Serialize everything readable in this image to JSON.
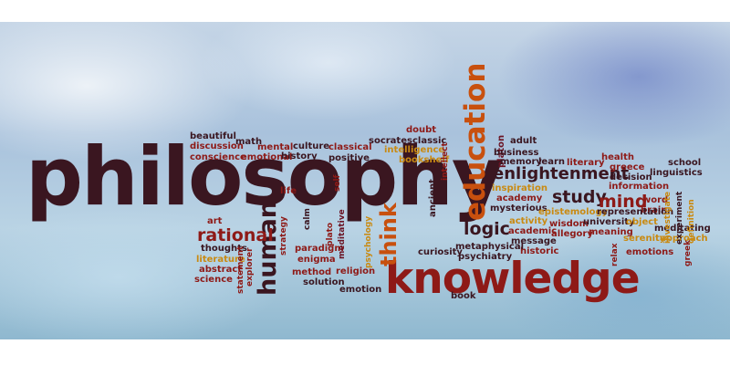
{
  "words": {
    "philosophy": "philosophy",
    "knowledge": "knowledge",
    "education": "education",
    "human": "human",
    "think": "think",
    "enlightenment": "enlightenment",
    "study": "study",
    "mind": "mind",
    "logic": "logic",
    "rational": "rational",
    "beautiful": "beautiful",
    "discussion": "discussion",
    "conscience": "conscience",
    "math": "math",
    "mental": "mental",
    "emotional": "emotional",
    "culture": "culture",
    "history": "history",
    "classical": "classical",
    "positive": "positive",
    "socrates": "socrates",
    "classic": "classic",
    "intelligence": "intelligence",
    "doubt": "doubt",
    "bookshelf": "bookshelf",
    "intellect": "intellect",
    "ancient": "ancient",
    "platon": "platon",
    "adult": "adult",
    "business": "business",
    "memory": "memory",
    "learn": "learn",
    "literary": "literary",
    "health": "health",
    "greece": "greece",
    "school": "school",
    "linguistics": "linguistics",
    "decision": "decision",
    "information": "information",
    "brain": "brain",
    "word": "word",
    "inspiration": "inspiration",
    "academy": "academy",
    "mysterious": "mysterious",
    "epistemology": "epistemology",
    "representation": "representation",
    "activity": "activity",
    "wisdom": "wisdom",
    "university": "university",
    "object": "object",
    "academic": "academic",
    "allegory": "allegory",
    "meaning": "meaning",
    "serenity": "serenity",
    "approach": "approach",
    "message": "message",
    "meditating": "meditating",
    "historic": "historic",
    "emotions": "emotions",
    "investigate": "investigate",
    "experiment": "experiment",
    "definition": "definition",
    "relax": "relax",
    "greek": "greek",
    "metaphysical": "metaphysical",
    "psychiatry": "psychiatry",
    "curiosity": "curiosity",
    "art": "art",
    "thoughts": "thoughts",
    "literature": "literature",
    "abstract": "abstract",
    "science": "science",
    "statement": "statement",
    "explorer": "explorer",
    "strategy": "strategy",
    "life": "life",
    "calm": "calm",
    "paradigm": "paradigm",
    "enigma": "enigma",
    "method": "method",
    "solution": "solution",
    "emotion": "emotion",
    "religion": "religion",
    "plato": "plato",
    "meditative": "meditative",
    "psychology": "psychology",
    "self": "self",
    "book": "book"
  }
}
